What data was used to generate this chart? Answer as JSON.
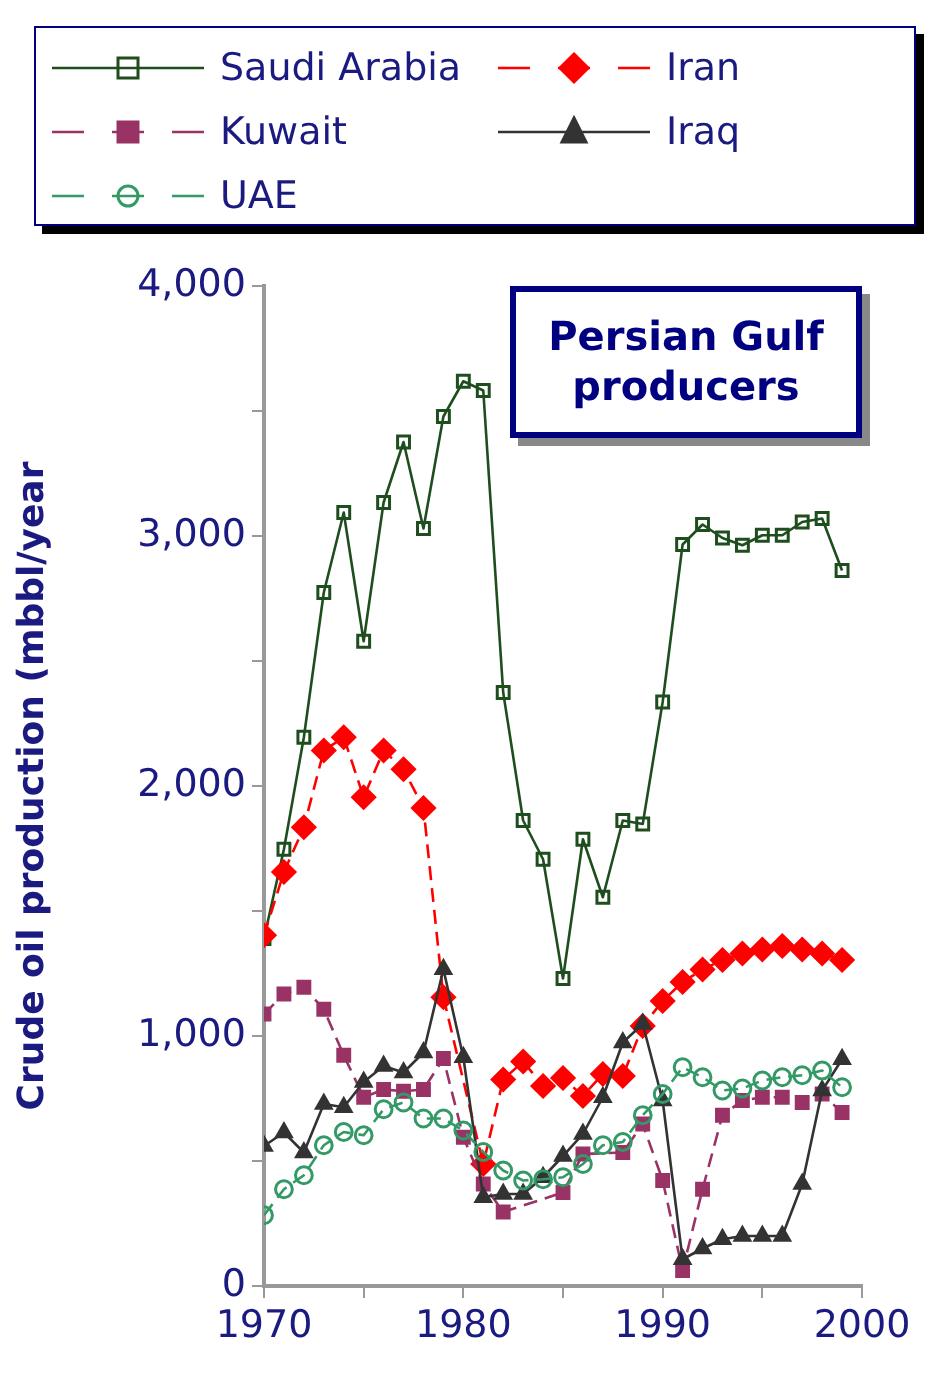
{
  "chart_data": {
    "type": "line",
    "ylabel": "Crude oil production (mbbl/year",
    "annotations": [
      "Persian Gulf producers"
    ],
    "x": [
      1970,
      1971,
      1972,
      1973,
      1974,
      1975,
      1976,
      1977,
      1978,
      1979,
      1980,
      1981,
      1982,
      1983,
      1984,
      1985,
      1986,
      1987,
      1988,
      1989,
      1990,
      1991,
      1992,
      1993,
      1994,
      1995,
      1996,
      1997,
      1998,
      1999
    ],
    "xlim": [
      1970,
      2000
    ],
    "xticks": [
      1970,
      {
        "value": 1975,
        "label": null
      },
      1980,
      {
        "value": 1985,
        "label": null
      },
      1990,
      {
        "value": 1995,
        "label": null
      },
      2000
    ],
    "ylim": [
      0,
      4000
    ],
    "yticks": [
      0,
      {
        "value": 500,
        "label": null
      },
      {
        "value": 1000,
        "label": "1,000"
      },
      {
        "value": 1500,
        "label": null
      },
      {
        "value": 2000,
        "label": "2,000"
      },
      {
        "value": 2500,
        "label": null
      },
      {
        "value": 3000,
        "label": "3,000"
      },
      {
        "value": 3500,
        "label": null
      },
      {
        "value": 4000,
        "label": "4,000"
      }
    ],
    "grid": false,
    "legend": "top",
    "series": [
      {
        "name": "Saudi Arabia",
        "color": "#1e4d1e",
        "marker": "square",
        "line_style": "solid",
        "values": [
          1390,
          1747,
          2195,
          2774,
          3094,
          2579,
          3134,
          3376,
          3030,
          3478,
          3619,
          3582,
          2374,
          1862,
          1707,
          1230,
          1787,
          1555,
          1862,
          1848,
          2336,
          2966,
          3046,
          2992,
          2963,
          3003,
          3003,
          3056,
          3070,
          2862
        ]
      },
      {
        "name": "Iran",
        "color": "#ff0000",
        "marker": "diamond",
        "line_style": "dashed",
        "values": [
          1403,
          1656,
          1835,
          2142,
          2195,
          1955,
          2142,
          2067,
          1912,
          1155,
          null,
          488,
          826,
          898,
          800,
          832,
          760,
          848,
          840,
          1040,
          1140,
          1216,
          1266,
          1304,
          1330,
          1346,
          1360,
          1346,
          1330,
          1304
        ]
      },
      {
        "name": "Kuwait",
        "color": "#993366",
        "marker": "square",
        "line_style": "dashed",
        "values": [
          1088,
          1168,
          1195,
          1107,
          923,
          755,
          786,
          779,
          786,
          910,
          595,
          408,
          296,
          null,
          null,
          374,
          528,
          null,
          534,
          648,
          422,
          62,
          387,
          683,
          742,
          755,
          755,
          734,
          768,
          694
        ]
      },
      {
        "name": "Iraq",
        "color": "#333333",
        "marker": "triangle",
        "line_style": "solid",
        "values": [
          560,
          614,
          534,
          728,
          715,
          816,
          880,
          854,
          934,
          1267,
          915,
          355,
          368,
          368,
          435,
          520,
          608,
          755,
          974,
          1048,
          742,
          107,
          150,
          187,
          200,
          200,
          200,
          408,
          782,
          907
        ]
      },
      {
        "name": "UAE",
        "color": "#339966",
        "marker": "circle",
        "line_style": "dashed",
        "values": [
          283,
          387,
          443,
          563,
          616,
          603,
          707,
          734,
          670,
          670,
          622,
          536,
          462,
          422,
          427,
          435,
          488,
          563,
          576,
          683,
          768,
          875,
          835,
          782,
          790,
          822,
          835,
          843,
          862,
          795
        ]
      }
    ]
  }
}
